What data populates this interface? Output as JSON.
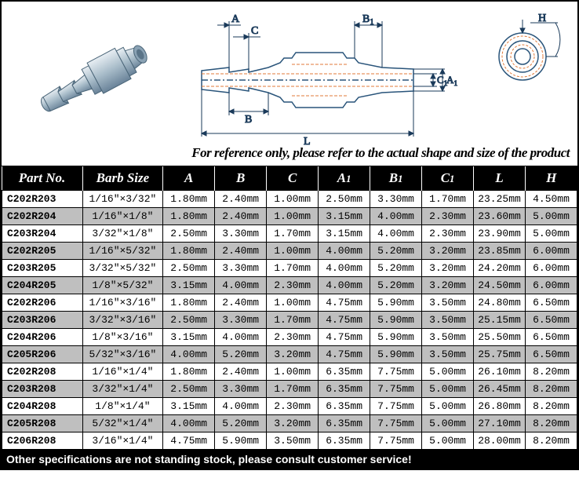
{
  "note": "For reference only, please refer to the actual shape and size of the product",
  "footer": "Other specifications are not standing stock, please consult customer service!",
  "columns": [
    "Part No.",
    "Barb Size",
    "A",
    "B",
    "C",
    "A1",
    "B1",
    "C1",
    "L",
    "H"
  ],
  "col_widths": [
    "14%",
    "14%",
    "9%",
    "9%",
    "9%",
    "9%",
    "9%",
    "9%",
    "9%",
    "9%"
  ],
  "rows": [
    {
      "pn": "C202R203",
      "barb": "1/16\"×3/32\"",
      "A": "1.80mm",
      "B": "2.40mm",
      "C": "1.00mm",
      "A1": "2.50mm",
      "B1": "3.30mm",
      "C1": "1.70mm",
      "L": "23.25mm",
      "H": "4.50mm"
    },
    {
      "pn": "C202R204",
      "barb": "1/16\"×1/8\"",
      "A": "1.80mm",
      "B": "2.40mm",
      "C": "1.00mm",
      "A1": "3.15mm",
      "B1": "4.00mm",
      "C1": "2.30mm",
      "L": "23.60mm",
      "H": "5.00mm"
    },
    {
      "pn": "C203R204",
      "barb": "3/32\"×1/8\"",
      "A": "2.50mm",
      "B": "3.30mm",
      "C": "1.70mm",
      "A1": "3.15mm",
      "B1": "4.00mm",
      "C1": "2.30mm",
      "L": "23.90mm",
      "H": "5.00mm"
    },
    {
      "pn": "C202R205",
      "barb": "1/16\"×5/32\"",
      "A": "1.80mm",
      "B": "2.40mm",
      "C": "1.00mm",
      "A1": "4.00mm",
      "B1": "5.20mm",
      "C1": "3.20mm",
      "L": "23.85mm",
      "H": "6.00mm"
    },
    {
      "pn": "C203R205",
      "barb": "3/32\"×5/32\"",
      "A": "2.50mm",
      "B": "3.30mm",
      "C": "1.70mm",
      "A1": "4.00mm",
      "B1": "5.20mm",
      "C1": "3.20mm",
      "L": "24.20mm",
      "H": "6.00mm"
    },
    {
      "pn": "C204R205",
      "barb": "1/8\"×5/32\"",
      "A": "3.15mm",
      "B": "4.00mm",
      "C": "2.30mm",
      "A1": "4.00mm",
      "B1": "5.20mm",
      "C1": "3.20mm",
      "L": "24.50mm",
      "H": "6.00mm"
    },
    {
      "pn": "C202R206",
      "barb": "1/16\"×3/16\"",
      "A": "1.80mm",
      "B": "2.40mm",
      "C": "1.00mm",
      "A1": "4.75mm",
      "B1": "5.90mm",
      "C1": "3.50mm",
      "L": "24.80mm",
      "H": "6.50mm"
    },
    {
      "pn": "C203R206",
      "barb": "3/32\"×3/16\"",
      "A": "2.50mm",
      "B": "3.30mm",
      "C": "1.70mm",
      "A1": "4.75mm",
      "B1": "5.90mm",
      "C1": "3.50mm",
      "L": "25.15mm",
      "H": "6.50mm"
    },
    {
      "pn": "C204R206",
      "barb": "1/8\"×3/16\"",
      "A": "3.15mm",
      "B": "4.00mm",
      "C": "2.30mm",
      "A1": "4.75mm",
      "B1": "5.90mm",
      "C1": "3.50mm",
      "L": "25.50mm",
      "H": "6.50mm"
    },
    {
      "pn": "C205R206",
      "barb": "5/32\"×3/16\"",
      "A": "4.00mm",
      "B": "5.20mm",
      "C": "3.20mm",
      "A1": "4.75mm",
      "B1": "5.90mm",
      "C1": "3.50mm",
      "L": "25.75mm",
      "H": "6.50mm"
    },
    {
      "pn": "C202R208",
      "barb": "1/16\"×1/4\"",
      "A": "1.80mm",
      "B": "2.40mm",
      "C": "1.00mm",
      "A1": "6.35mm",
      "B1": "7.75mm",
      "C1": "5.00mm",
      "L": "26.10mm",
      "H": "8.20mm"
    },
    {
      "pn": "C203R208",
      "barb": "3/32\"×1/4\"",
      "A": "2.50mm",
      "B": "3.30mm",
      "C": "1.70mm",
      "A1": "6.35mm",
      "B1": "7.75mm",
      "C1": "5.00mm",
      "L": "26.45mm",
      "H": "8.20mm"
    },
    {
      "pn": "C204R208",
      "barb": "1/8\"×1/4\"",
      "A": "3.15mm",
      "B": "4.00mm",
      "C": "2.30mm",
      "A1": "6.35mm",
      "B1": "7.75mm",
      "C1": "5.00mm",
      "L": "26.80mm",
      "H": "8.20mm"
    },
    {
      "pn": "C205R208",
      "barb": "5/32\"×1/4\"",
      "A": "4.00mm",
      "B": "5.20mm",
      "C": "3.20mm",
      "A1": "6.35mm",
      "B1": "7.75mm",
      "C1": "5.00mm",
      "L": "27.10mm",
      "H": "8.20mm"
    },
    {
      "pn": "C206R208",
      "barb": "3/16\"×1/4\"",
      "A": "4.75mm",
      "B": "5.90mm",
      "C": "3.50mm",
      "A1": "6.35mm",
      "B1": "7.75mm",
      "C1": "5.00mm",
      "L": "28.00mm",
      "H": "8.20mm"
    }
  ],
  "diagram": {
    "labels": [
      "A",
      "C",
      "B",
      "B1",
      "C1",
      "A1",
      "L",
      "H"
    ],
    "stroke_main": "#29547a",
    "stroke_dim": "#1a3a5a",
    "stroke_hidden": "#e07a3a",
    "fill_shade": "#9db4c4"
  }
}
